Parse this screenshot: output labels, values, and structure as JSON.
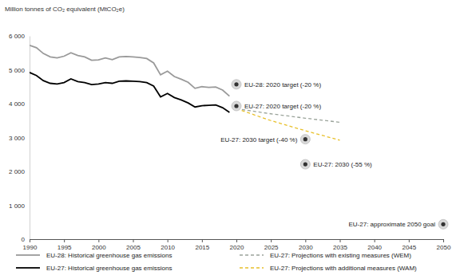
{
  "chart_data": {
    "type": "line",
    "y_label": "Million tonnes of CO₂ equivalent (MtCO₂e)",
    "xlim": [
      1990,
      2050
    ],
    "xticks": [
      1990,
      1995,
      2000,
      2005,
      2010,
      2015,
      2020,
      2025,
      2030,
      2035,
      2040,
      2045,
      2050
    ],
    "ylim": [
      0,
      6000
    ],
    "yticks": [
      0,
      {
        "value": 1000,
        "label": "1 000"
      },
      {
        "value": 2000,
        "label": "2 000"
      },
      {
        "value": 3000,
        "label": "3 000"
      },
      {
        "value": 4000,
        "label": "4 000"
      },
      {
        "value": 5000,
        "label": "5 000"
      },
      {
        "value": 6000,
        "label": "6 000"
      }
    ],
    "grid": false,
    "legend": "bottom",
    "series": [
      {
        "name": "EU-28: Historical greenhouse gas emissions",
        "color": "#9a9a9a",
        "line_style": "solid",
        "x": [
          1990,
          1991,
          1992,
          1993,
          1994,
          1995,
          1996,
          1997,
          1998,
          1999,
          2000,
          2001,
          2002,
          2003,
          2004,
          2005,
          2006,
          2007,
          2008,
          2009,
          2010,
          2011,
          2012,
          2013,
          2014,
          2015,
          2016,
          2017,
          2018,
          2019
        ],
        "values": [
          5720,
          5650,
          5480,
          5380,
          5350,
          5400,
          5500,
          5420,
          5380,
          5280,
          5290,
          5350,
          5300,
          5380,
          5390,
          5380,
          5360,
          5330,
          5200,
          4850,
          4960,
          4800,
          4720,
          4630,
          4450,
          4500,
          4480,
          4490,
          4400,
          4220
        ]
      },
      {
        "name": "EU-27: Historical greenhouse gas emissions",
        "color": "#000000",
        "line_style": "solid",
        "x": [
          1990,
          1991,
          1992,
          1993,
          1994,
          1995,
          1996,
          1997,
          1998,
          1999,
          2000,
          2001,
          2002,
          2003,
          2004,
          2005,
          2006,
          2007,
          2008,
          2009,
          2010,
          2011,
          2012,
          2013,
          2014,
          2015,
          2016,
          2017,
          2018,
          2019
        ],
        "values": [
          4920,
          4830,
          4680,
          4600,
          4580,
          4620,
          4730,
          4650,
          4620,
          4560,
          4580,
          4620,
          4600,
          4660,
          4670,
          4660,
          4650,
          4620,
          4520,
          4200,
          4300,
          4180,
          4110,
          4020,
          3900,
          3940,
          3950,
          3960,
          3880,
          3740
        ]
      },
      {
        "name": "EU-27: Projections with existing measures (WEM)",
        "color": "#9aa39a",
        "line_style": "dashed",
        "x": [
          2020,
          2025,
          2030,
          2035
        ],
        "values": [
          3850,
          3700,
          3570,
          3450
        ]
      },
      {
        "name": "EU-27: Projections with additional measures (WAM)",
        "color": "#e8c02a",
        "line_style": "dashed",
        "x": [
          2020,
          2025,
          2030,
          2035
        ],
        "values": [
          3850,
          3500,
          3200,
          2920
        ]
      }
    ],
    "annotations": [
      {
        "text": "EU-28: 2020 target (-20 %)",
        "x": 2020,
        "y": 4570
      },
      {
        "text": "EU-27: 2020 target (-20 %)",
        "x": 2020,
        "y": 3930
      },
      {
        "text": "EU-27: 2030 target (-40 %)",
        "x": 2030,
        "y": 2950
      },
      {
        "text": "EU-27: 2030 (-55 %)",
        "x": 2030,
        "y": 2210
      },
      {
        "text": "EU-27: approximate 2050 goal",
        "x": 2050,
        "y": 440
      }
    ]
  }
}
